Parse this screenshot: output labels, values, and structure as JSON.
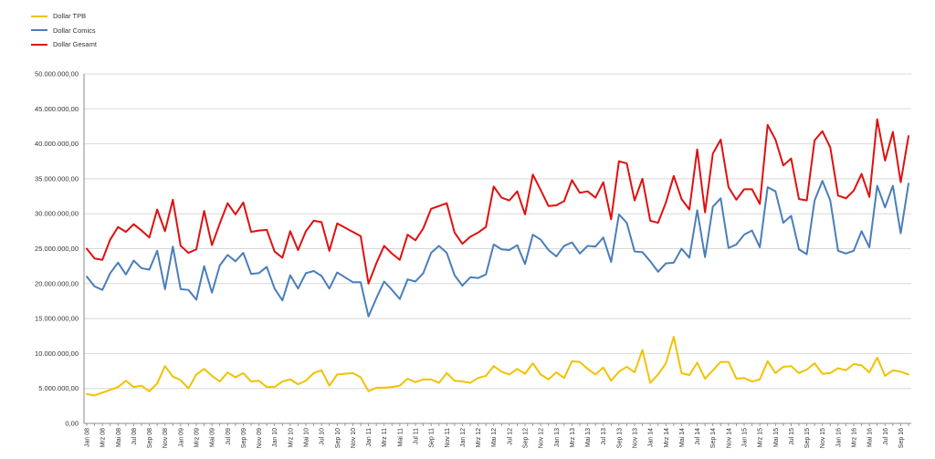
{
  "chart_data": {
    "type": "line",
    "title": "",
    "xlabel": "",
    "ylabel": "",
    "ylim": [
      0,
      50000000
    ],
    "yticks": [
      0,
      5000000,
      10000000,
      15000000,
      20000000,
      25000000,
      30000000,
      35000000,
      40000000,
      45000000,
      50000000
    ],
    "ytick_labels": [
      "0,00",
      "5.000.000,00",
      "10.000.000,00",
      "15.000.000,00",
      "20.000.000,00",
      "25.000.000,00",
      "30.000.000,00",
      "35.000.000,00",
      "40.000.000,00",
      "45.000.000,00",
      "50.000.000,00"
    ],
    "grid": true,
    "legend_position": "top-left",
    "x": [
      "Jan 08",
      "Feb 08",
      "Mrz 08",
      "Apr 08",
      "Mai 08",
      "Jun 08",
      "Jul 08",
      "Aug 08",
      "Sep 08",
      "Okt 08",
      "Nov 08",
      "Dez 08",
      "Jan 09",
      "Feb 09",
      "Mrz 09",
      "Apr 09",
      "Mai 09",
      "Jun 09",
      "Jul 09",
      "Aug 09",
      "Sep 09",
      "Okt 09",
      "Nov 09",
      "Dez 09",
      "Jan 10",
      "Feb 10",
      "Mrz 10",
      "Apr 10",
      "Mai 10",
      "Jun 10",
      "Jul 10",
      "Aug 10",
      "Sep 10",
      "Okt 10",
      "Nov 10",
      "Dez 10",
      "Jan 11",
      "Feb 11",
      "Mrz 11",
      "Apr 11",
      "Mai 11",
      "Jun 11",
      "Jul 11",
      "Aug 11",
      "Sep 11",
      "Okt 11",
      "Nov 11",
      "Dez 11",
      "Jan 12",
      "Feb 12",
      "Mrz 12",
      "Apr 12",
      "Mai 12",
      "Jun 12",
      "Jul 12",
      "Aug 12",
      "Sep 12",
      "Okt 12",
      "Nov 12",
      "Dez 12",
      "Jan 13",
      "Feb 13",
      "Mrz 13",
      "Apr 13",
      "Mai 13",
      "Jun 13",
      "Jul 13",
      "Aug 13",
      "Sep 13",
      "Okt 13",
      "Nov 13",
      "Dez 13",
      "Jan 14",
      "Feb 14",
      "Mrz 14",
      "Apr 14",
      "Mai 14",
      "Jun 14",
      "Jul 14",
      "Aug 14",
      "Sep 14",
      "Okt 14",
      "Nov 14",
      "Dez 14",
      "Jan 15",
      "Feb 15",
      "Mrz 15",
      "Apr 15",
      "Mai 15",
      "Jun 15",
      "Jul 15",
      "Aug 15",
      "Sep 15",
      "Okt 15",
      "Nov 15",
      "Dez 15",
      "Jan 16",
      "Feb 16",
      "Mrz 16",
      "Apr 16",
      "Mai 16",
      "Jun 16",
      "Jul 16",
      "Aug 16",
      "Sep 16",
      "Okt 16"
    ],
    "xtick_labels": [
      "Jan 08",
      "Mrz 08",
      "Mai 08",
      "Jul 08",
      "Sep 08",
      "Nov 08",
      "Jan 09",
      "Mrz 09",
      "Mai 09",
      "Jul 09",
      "Sep 09",
      "Nov 09",
      "Jan 10",
      "Mrz 10",
      "Mai 10",
      "Jul 10",
      "Sep 10",
      "Nov 10",
      "Jan 11",
      "Mrz 11",
      "Mai 11",
      "Jul 11",
      "Sep 11",
      "Nov 11",
      "Jan 12",
      "Mrz 12",
      "Mai 12",
      "Jul 12",
      "Sep 12",
      "Nov 12",
      "Jan 13",
      "Mrz 13",
      "Mai 13",
      "Jul 13",
      "Sep 13",
      "Nov 13",
      "Jan 14",
      "Mrz 14",
      "Mai 14",
      "Jul 14",
      "Sep 14",
      "Nov 14",
      "Jan 15",
      "Mrz 15",
      "Mai 15",
      "Jul 15",
      "Sep 15",
      "Nov 15",
      "Jan 16",
      "Mrz 16",
      "Mai 16",
      "Jul 16",
      "Sep 16"
    ],
    "series": [
      {
        "name": "Dollar TPB",
        "color": "#f2c200",
        "values": [
          4200000,
          4000000,
          4400000,
          4800000,
          5200000,
          6100000,
          5200000,
          5400000,
          4600000,
          5700000,
          8200000,
          6700000,
          6200000,
          5000000,
          7000000,
          7800000,
          6800000,
          6000000,
          7300000,
          6600000,
          7200000,
          6000000,
          6100000,
          5200000,
          5200000,
          6000000,
          6300000,
          5600000,
          6100000,
          7200000,
          7600000,
          5400000,
          7000000,
          7100000,
          7200000,
          6600000,
          4600000,
          5100000,
          5100000,
          5200000,
          5400000,
          6400000,
          5900000,
          6300000,
          6300000,
          5800000,
          7200000,
          6100000,
          6000000,
          5800000,
          6500000,
          6800000,
          8200000,
          7400000,
          7000000,
          7800000,
          7100000,
          8600000,
          7000000,
          6300000,
          7300000,
          6500000,
          8900000,
          8800000,
          7800000,
          7000000,
          8000000,
          6100000,
          7400000,
          8100000,
          7300000,
          10500000,
          5800000,
          7000000,
          8600000,
          12400000,
          7200000,
          6900000,
          8700000,
          6400000,
          7600000,
          8800000,
          8800000,
          6400000,
          6500000,
          6000000,
          6300000,
          8900000,
          7200000,
          8100000,
          8200000,
          7200000,
          7700000,
          8600000,
          7100000,
          7200000,
          7900000,
          7600000,
          8500000,
          8300000,
          7300000,
          9400000,
          6800000,
          7600000,
          7400000,
          7000000
        ]
      },
      {
        "name": "Dollar Comics",
        "color": "#4a7ebb",
        "values": [
          21000000,
          19600000,
          19100000,
          21500000,
          23000000,
          21300000,
          23300000,
          22200000,
          22000000,
          24700000,
          19200000,
          25300000,
          19200000,
          19100000,
          17700000,
          22500000,
          18700000,
          22600000,
          24100000,
          23200000,
          24400000,
          21400000,
          21500000,
          22400000,
          19300000,
          17600000,
          21200000,
          19300000,
          21500000,
          21800000,
          21100000,
          19300000,
          21600000,
          20900000,
          20200000,
          20200000,
          15300000,
          17900000,
          20300000,
          19100000,
          17800000,
          20600000,
          20300000,
          21500000,
          24400000,
          25400000,
          24400000,
          21200000,
          19700000,
          20900000,
          20800000,
          21300000,
          25600000,
          24900000,
          24800000,
          25500000,
          22800000,
          27000000,
          26300000,
          24800000,
          23900000,
          25400000,
          25900000,
          24300000,
          25400000,
          25300000,
          26600000,
          23100000,
          29900000,
          28700000,
          24600000,
          24500000,
          23200000,
          21700000,
          22900000,
          23000000,
          25000000,
          23700000,
          30500000,
          23800000,
          31000000,
          32200000,
          25100000,
          25600000,
          27000000,
          27600000,
          25200000,
          33800000,
          33200000,
          28700000,
          29700000,
          24900000,
          24200000,
          31900000,
          34700000,
          31900000,
          24700000,
          24300000,
          24700000,
          27500000,
          25200000,
          34000000,
          30900000,
          34000000,
          27200000,
          34300000
        ]
      },
      {
        "name": "Dollar Gesamt",
        "color": "#e01010",
        "values": [
          25000000,
          23600000,
          23400000,
          26300000,
          28100000,
          27400000,
          28500000,
          27600000,
          26600000,
          30600000,
          27500000,
          32000000,
          25400000,
          24400000,
          24900000,
          30400000,
          25500000,
          28600000,
          31500000,
          29900000,
          31600000,
          27400000,
          27600000,
          27700000,
          24600000,
          23700000,
          27500000,
          24800000,
          27500000,
          29000000,
          28800000,
          24700000,
          28600000,
          28000000,
          27400000,
          26800000,
          20000000,
          22900000,
          25400000,
          24300000,
          23400000,
          27000000,
          26200000,
          27900000,
          30700000,
          31100000,
          31500000,
          27300000,
          25700000,
          26700000,
          27300000,
          28100000,
          33900000,
          32300000,
          31900000,
          33200000,
          29900000,
          35600000,
          33400000,
          31100000,
          31200000,
          31800000,
          34800000,
          33000000,
          33200000,
          32300000,
          34500000,
          29200000,
          37500000,
          37200000,
          31900000,
          35000000,
          29000000,
          28700000,
          31600000,
          35400000,
          32100000,
          30600000,
          39200000,
          30200000,
          38600000,
          40600000,
          33800000,
          32000000,
          33500000,
          33500000,
          31400000,
          42700000,
          40600000,
          36900000,
          37900000,
          32100000,
          31900000,
          40500000,
          41800000,
          39500000,
          32600000,
          32200000,
          33300000,
          35700000,
          32400000,
          43500000,
          37600000,
          41700000,
          34500000,
          41100000
        ]
      }
    ]
  }
}
